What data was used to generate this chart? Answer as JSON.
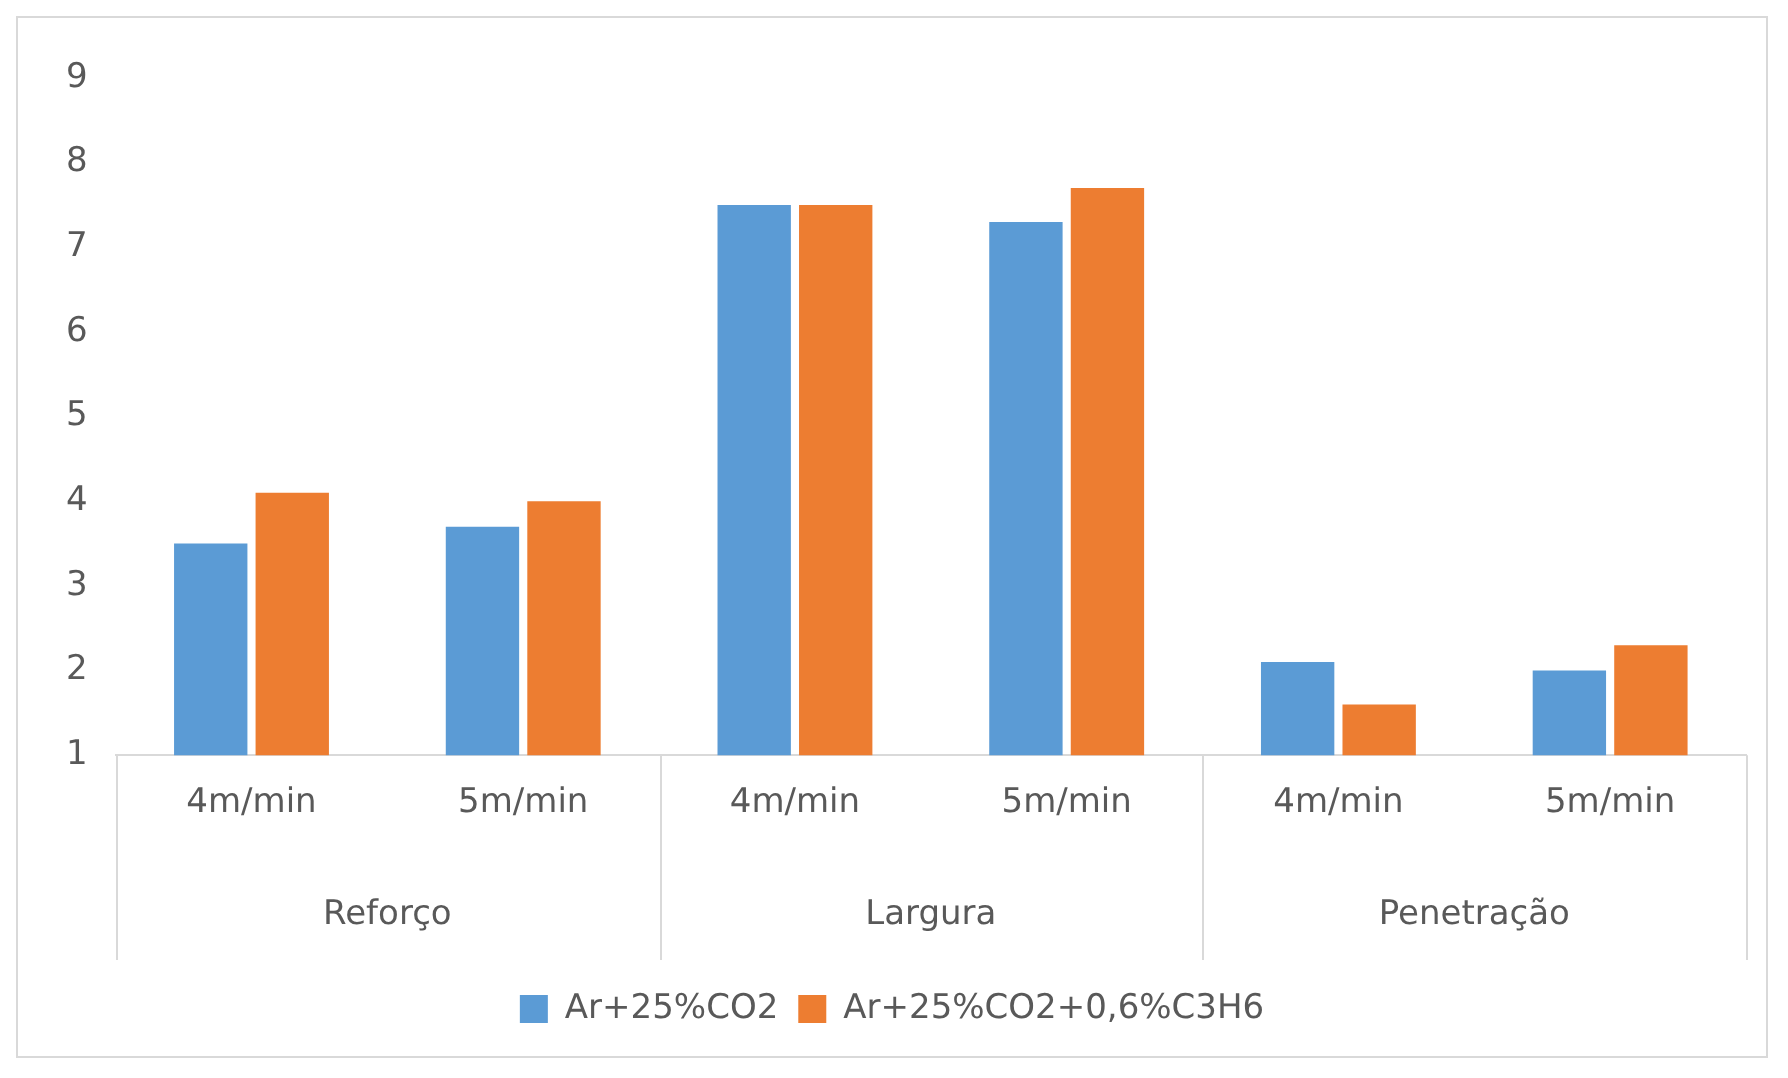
{
  "chart_data": {
    "type": "bar",
    "categories": [
      "4m/min",
      "5m/min",
      "4m/min",
      "5m/min",
      "4m/min",
      "5m/min"
    ],
    "annotations": [
      "Reforço",
      "Largura",
      "Penetração"
    ],
    "series": [
      {
        "name": "Ar+25%CO2",
        "color": "#5b9bd5",
        "values": [
          3.5,
          3.7,
          7.5,
          7.3,
          2.1,
          2.0
        ]
      },
      {
        "name": "Ar+25%CO2+0,6%C3H6",
        "color": "#ed7d31",
        "values": [
          4.1,
          4.0,
          7.5,
          7.7,
          1.6,
          2.3
        ]
      }
    ],
    "ylim": [
      1,
      9
    ],
    "yticks": [
      1,
      2,
      3,
      4,
      5,
      6,
      7,
      8,
      9
    ],
    "grid": false,
    "legend": "bottom"
  }
}
